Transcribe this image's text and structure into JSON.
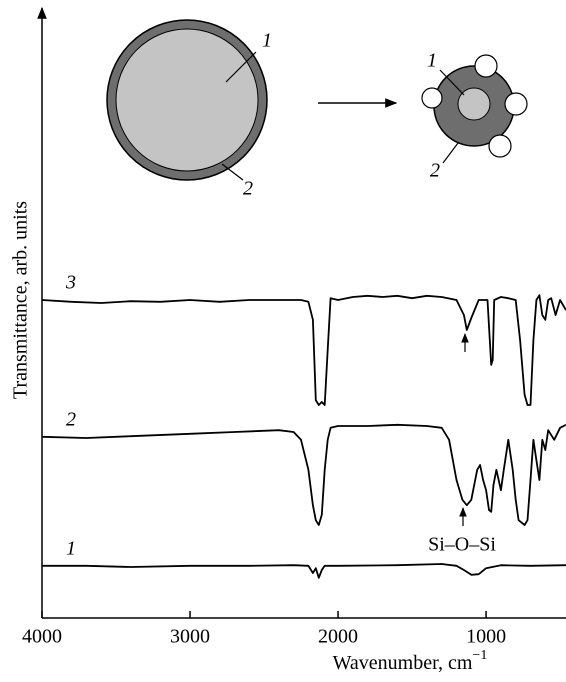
{
  "chart_data": {
    "type": "line",
    "ylabel": "Transmittance, arb. units",
    "xlabel": {
      "text": "Wavenumber, cm",
      "superscript": "−1"
    },
    "xlim": [
      4000,
      460
    ],
    "ylim": [
      0,
      100
    ],
    "xticks": [
      4000,
      3000,
      2000,
      1000
    ],
    "annotations": [
      "Si–O–Si"
    ],
    "series": [
      {
        "name": "3",
        "color": "#000000",
        "x": [
          4000,
          3800,
          3600,
          3400,
          3200,
          3000,
          2800,
          2600,
          2400,
          2250,
          2200,
          2170,
          2150,
          2130,
          2110,
          2090,
          2070,
          2050,
          2000,
          1900,
          1800,
          1700,
          1600,
          1500,
          1400,
          1300,
          1200,
          1150,
          1130,
          1100,
          1050,
          990,
          975,
          965,
          955,
          945,
          900,
          850,
          800,
          770,
          740,
          720,
          700,
          680,
          660,
          640,
          620,
          600,
          580,
          560,
          530,
          500,
          460
        ],
        "values": [
          53,
          52.7,
          52.5,
          52.8,
          52.7,
          53,
          52.7,
          53,
          53,
          53,
          52.7,
          49.7,
          36.3,
          35.5,
          36,
          35.5,
          44.7,
          53.3,
          53,
          53.5,
          53.7,
          53.5,
          53.7,
          53.3,
          53.7,
          53.5,
          53,
          50.5,
          48,
          50,
          53,
          53,
          46.3,
          42.2,
          43,
          53,
          53.5,
          53.3,
          53,
          46.3,
          37.2,
          35.5,
          35.5,
          46.3,
          53,
          53.8,
          50.5,
          49.7,
          53,
          53.3,
          50.5,
          53,
          51.3
        ]
      },
      {
        "name": "2",
        "color": "#000000",
        "x": [
          4000,
          3700,
          3400,
          3000,
          2700,
          2400,
          2300,
          2250,
          2200,
          2170,
          2150,
          2130,
          2110,
          2090,
          2070,
          2050,
          2000,
          1800,
          1600,
          1400,
          1300,
          1250,
          1200,
          1160,
          1130,
          1100,
          1060,
          1040,
          1020,
          1000,
          980,
          965,
          950,
          930,
          900,
          880,
          850,
          820,
          800,
          780,
          740,
          720,
          700,
          680,
          660,
          640,
          620,
          600,
          580,
          540,
          500,
          460
        ],
        "values": [
          30.2,
          30,
          30.3,
          30.7,
          31,
          31.3,
          31,
          29.7,
          24.7,
          18.8,
          16.3,
          15.5,
          17.2,
          24.7,
          29.7,
          31.7,
          32,
          32,
          32.2,
          32,
          31.7,
          29.7,
          23,
          19.7,
          18.8,
          19.7,
          24.7,
          25.5,
          23,
          21.3,
          18,
          17.7,
          22.2,
          24.7,
          21.3,
          24.7,
          29.7,
          24.7,
          19.7,
          16.3,
          15.5,
          16.3,
          23,
          29.7,
          26.3,
          23,
          29.7,
          28,
          31.3,
          29.7,
          31.7,
          32.2
        ]
      },
      {
        "name": "1",
        "color": "#000000",
        "x": [
          4000,
          3700,
          3400,
          3000,
          2600,
          2300,
          2200,
          2170,
          2150,
          2130,
          2110,
          2090,
          2000,
          1600,
          1300,
          1200,
          1150,
          1100,
          1050,
          1000,
          900,
          700,
          460
        ],
        "values": [
          8.7,
          8.7,
          8.5,
          8.7,
          8.7,
          8.8,
          8.7,
          7.5,
          8.3,
          6.7,
          8,
          8.7,
          8.7,
          8.8,
          9,
          8.7,
          8,
          7.2,
          7.3,
          8.3,
          8.8,
          8.7,
          8.8
        ]
      }
    ]
  },
  "inset": {
    "before": {
      "labels": [
        "1",
        "2"
      ]
    },
    "after": {
      "labels": [
        "1",
        "2"
      ]
    }
  }
}
